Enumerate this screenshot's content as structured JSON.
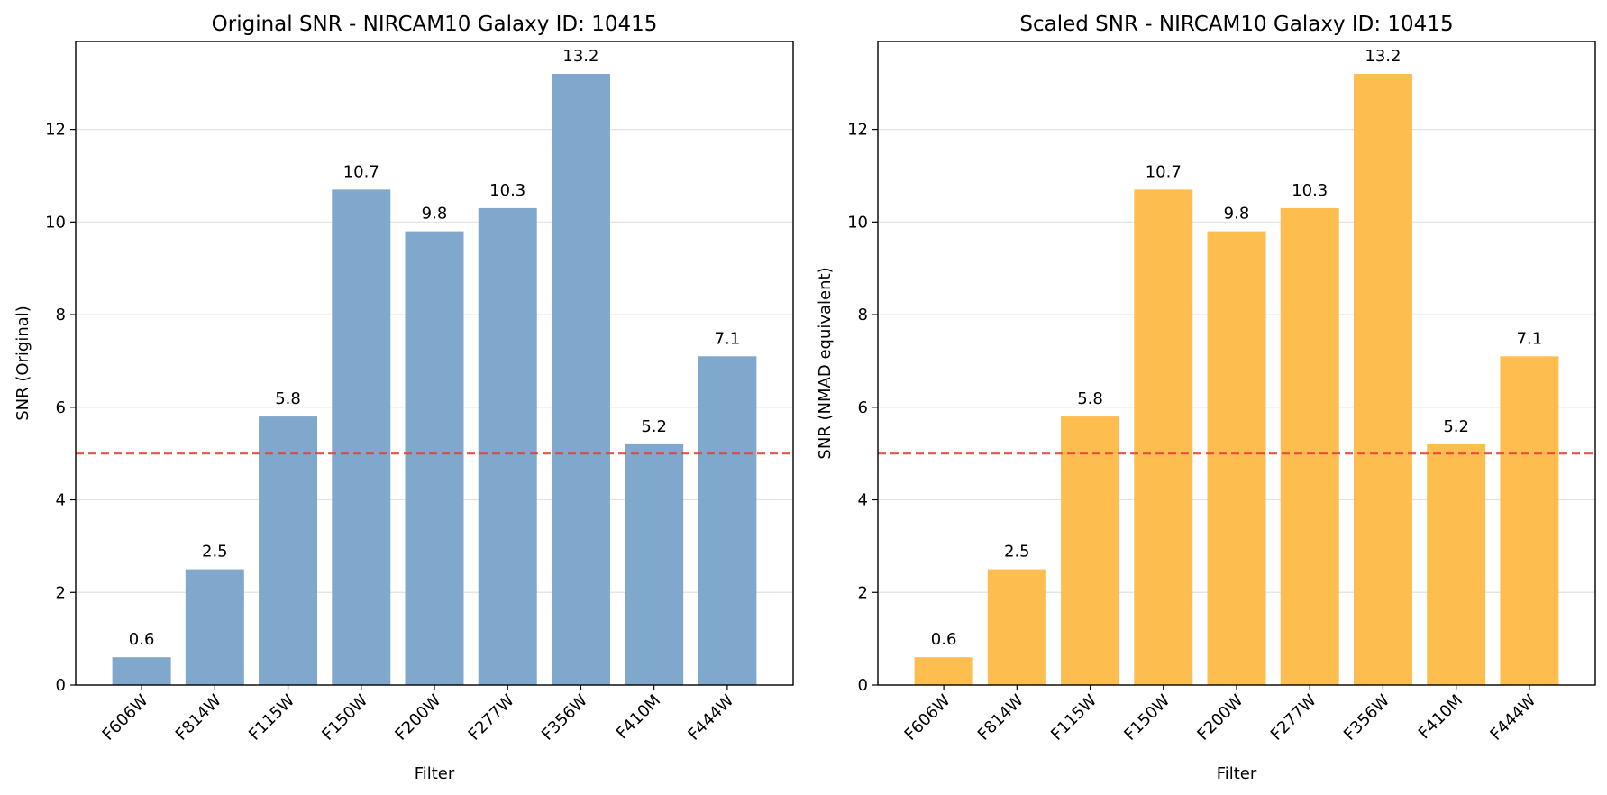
{
  "chart_data": [
    {
      "type": "bar",
      "title": "Original SNR - NIRCAM10 Galaxy ID: 10415",
      "xlabel": "Filter",
      "ylabel": "SNR (Original)",
      "categories": [
        "F606W",
        "F814W",
        "F115W",
        "F150W",
        "F200W",
        "F277W",
        "F356W",
        "F410M",
        "F444W"
      ],
      "values": [
        0.6,
        2.5,
        5.8,
        10.7,
        9.8,
        10.3,
        13.2,
        5.2,
        7.1
      ],
      "bar_labels": [
        "0.6",
        "2.5",
        "5.8",
        "10.7",
        "9.8",
        "10.3",
        "13.2",
        "5.2",
        "7.1"
      ],
      "ylim": [
        0,
        13.9
      ],
      "yticks": [
        0,
        2,
        4,
        6,
        8,
        10,
        12
      ],
      "ytick_labels": [
        "0",
        "2",
        "4",
        "6",
        "8",
        "10",
        "12"
      ],
      "threshold": 5,
      "threshold_style": "dashed",
      "grid": "y",
      "bar_color": "#7fa8cc",
      "threshold_color": "#e8413a"
    },
    {
      "type": "bar",
      "title": "Scaled SNR - NIRCAM10 Galaxy ID: 10415",
      "xlabel": "Filter",
      "ylabel": "SNR (NMAD equivalent)",
      "categories": [
        "F606W",
        "F814W",
        "F115W",
        "F150W",
        "F200W",
        "F277W",
        "F356W",
        "F410M",
        "F444W"
      ],
      "values": [
        0.6,
        2.5,
        5.8,
        10.7,
        9.8,
        10.3,
        13.2,
        5.2,
        7.1
      ],
      "bar_labels": [
        "0.6",
        "2.5",
        "5.8",
        "10.7",
        "9.8",
        "10.3",
        "13.2",
        "5.2",
        "7.1"
      ],
      "ylim": [
        0,
        13.9
      ],
      "yticks": [
        0,
        2,
        4,
        6,
        8,
        10,
        12
      ],
      "ytick_labels": [
        "0",
        "2",
        "4",
        "6",
        "8",
        "10",
        "12"
      ],
      "threshold": 5,
      "threshold_style": "dashed",
      "grid": "y",
      "bar_color": "#fdbe4f",
      "threshold_color": "#e8413a"
    }
  ]
}
